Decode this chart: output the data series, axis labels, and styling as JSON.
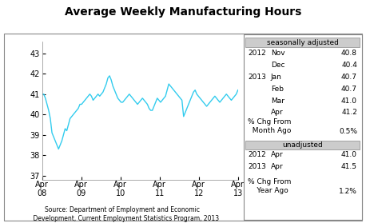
{
  "title": "Average Weekly Manufacturing Hours",
  "line_color": "#33CCEE",
  "background_color": "#ffffff",
  "plot_bg_color": "#ffffff",
  "yticks": [
    37,
    38,
    39,
    40,
    41,
    42,
    43
  ],
  "ylim": [
    36.8,
    43.6
  ],
  "xtick_labels": [
    "Apr\n08",
    "Apr\n09",
    "Apr\n10",
    "Apr\n11",
    "Apr\n12",
    "Apr\n13"
  ],
  "source_text": "Source: Department of Employment and Economic\n    Development, Current Employment Statistics Program, 2013",
  "seasonally_adjusted_label": "seasonally adjusted",
  "unadjusted_label": "unadjusted",
  "sa_rows": [
    [
      "2012",
      "Nov",
      "40.8"
    ],
    [
      "",
      "Dec",
      "40.4"
    ],
    [
      "2013",
      "Jan",
      "40.7"
    ],
    [
      "",
      "Feb",
      "40.7"
    ],
    [
      "",
      "Mar",
      "41.0"
    ],
    [
      "",
      "Apr",
      "41.2"
    ]
  ],
  "sa_pct_label": "% Chg From\n  Month Ago",
  "sa_pct_value": "0.5%",
  "ua_rows": [
    [
      "2012",
      "Apr",
      "41.0"
    ],
    [
      "2013",
      "Apr",
      "41.5"
    ]
  ],
  "ua_pct_label": "% Chg From\n    Year Ago",
  "ua_pct_value": "1.2%",
  "series": [
    41.0,
    41.0,
    40.8,
    40.5,
    40.2,
    39.8,
    39.1,
    38.9,
    38.7,
    38.5,
    38.3,
    38.5,
    38.7,
    39.0,
    39.3,
    39.2,
    39.5,
    39.8,
    39.9,
    40.0,
    40.1,
    40.2,
    40.3,
    40.5,
    40.5,
    40.6,
    40.7,
    40.8,
    40.9,
    41.0,
    40.9,
    40.7,
    40.8,
    40.9,
    41.0,
    40.9,
    41.0,
    41.1,
    41.3,
    41.5,
    41.8,
    41.9,
    41.7,
    41.4,
    41.2,
    41.0,
    40.8,
    40.7,
    40.6,
    40.6,
    40.7,
    40.8,
    40.9,
    41.0,
    40.9,
    40.8,
    40.7,
    40.6,
    40.5,
    40.6,
    40.7,
    40.8,
    40.7,
    40.6,
    40.5,
    40.3,
    40.2,
    40.2,
    40.4,
    40.6,
    40.8,
    40.7,
    40.6,
    40.7,
    40.8,
    40.9,
    41.2,
    41.5,
    41.4,
    41.3,
    41.2,
    41.1,
    41.0,
    40.9,
    40.8,
    40.7,
    39.9,
    40.1,
    40.3,
    40.5,
    40.7,
    40.9,
    41.1,
    41.2,
    41.0,
    40.9,
    40.8,
    40.7,
    40.6,
    40.5,
    40.4,
    40.5,
    40.6,
    40.7,
    40.8,
    40.9,
    40.8,
    40.7,
    40.6,
    40.7,
    40.8,
    40.9,
    41.0,
    40.9,
    40.8,
    40.7,
    40.8,
    40.9,
    41.0,
    41.2
  ]
}
